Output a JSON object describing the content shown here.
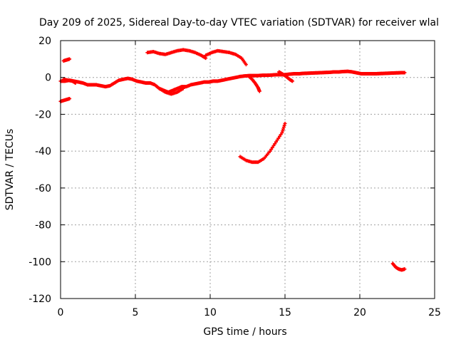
{
  "chart_data": {
    "type": "scatter",
    "title": "Day 209 of 2025, Sidereal Day-to-day VTEC variation (SDTVAR) for receiver wlal",
    "xlabel": "GPS time / hours",
    "ylabel": "SDTVAR / TECUs",
    "xlim": [
      0,
      25
    ],
    "ylim": [
      -120,
      20
    ],
    "xticks": [
      0,
      5,
      10,
      15,
      20,
      25
    ],
    "yticks": [
      20,
      0,
      -20,
      -40,
      -60,
      -80,
      -100,
      -120
    ],
    "grid": true,
    "legend": "none",
    "series_color": "#ff0000",
    "series": [
      {
        "x": [
          0.0,
          0.3,
          0.6,
          0.9,
          1.2,
          1.5,
          1.8,
          2.1,
          2.4,
          2.7,
          3.0,
          3.3,
          3.6,
          3.9,
          4.2,
          4.5,
          4.8,
          5.1,
          5.4,
          5.7,
          6.0,
          6.3,
          6.6,
          6.9,
          7.2,
          7.5,
          7.8,
          8.1,
          8.4,
          8.7,
          9.0,
          9.3,
          9.6,
          9.9,
          10.2,
          10.5,
          10.8,
          11.1,
          11.4,
          11.7,
          12.0,
          12.3,
          12.6,
          12.9,
          13.2,
          13.5,
          13.8,
          14.1,
          14.4,
          14.7,
          15.0,
          15.3,
          15.6,
          15.9,
          16.2,
          16.5,
          16.8,
          17.1,
          17.4,
          17.7,
          18.0,
          18.3,
          18.6,
          18.9,
          19.2,
          19.5,
          19.8,
          20.1,
          20.4,
          20.7,
          21.0,
          21.3,
          21.6,
          21.9,
          22.2,
          22.5,
          22.8,
          23.0
        ],
        "y": [
          -2,
          -2,
          -1.5,
          -2,
          -2.5,
          -3,
          -4,
          -4,
          -4,
          -4.5,
          -5,
          -4.5,
          -3,
          -1.5,
          -1,
          -0.5,
          -1,
          -2,
          -2.5,
          -3,
          -3,
          -4,
          -6,
          -7,
          -8,
          -7,
          -6,
          -5,
          -5,
          -4,
          -3.5,
          -3,
          -2.5,
          -2.5,
          -2,
          -2,
          -1.5,
          -1,
          -0.5,
          0,
          0.5,
          0.8,
          1,
          1,
          1,
          1.2,
          1.2,
          1.3,
          1.5,
          1.5,
          1.5,
          1.8,
          2,
          2,
          2.2,
          2.3,
          2.4,
          2.5,
          2.6,
          2.7,
          2.8,
          3,
          3,
          3.2,
          3.3,
          3,
          2.5,
          2,
          2,
          2,
          2,
          2.1,
          2.2,
          2.3,
          2.4,
          2.5,
          2.6,
          2.6
        ]
      },
      {
        "x": [
          0.2,
          0.4,
          0.6
        ],
        "y": [
          9,
          9.5,
          10
        ]
      },
      {
        "x": [
          0.0,
          0.2,
          0.4,
          0.6
        ],
        "y": [
          -13,
          -12.5,
          -12,
          -11.5
        ]
      },
      {
        "x": [
          0.2,
          0.5,
          0.8,
          1.0
        ],
        "y": [
          -1,
          -1.5,
          -2,
          -3
        ]
      },
      {
        "x": [
          5.8,
          6.2,
          6.6,
          7.0,
          7.4,
          7.8,
          8.2,
          8.6,
          9.0,
          9.4,
          9.7
        ],
        "y": [
          13.5,
          14,
          13,
          12.5,
          13.5,
          14.5,
          15,
          14.5,
          13.5,
          12,
          10.5
        ]
      },
      {
        "x": [
          9.7,
          10.1,
          10.5,
          10.9,
          11.3,
          11.7,
          12.1,
          12.4
        ],
        "y": [
          12,
          13.5,
          14.5,
          14,
          13.5,
          12.5,
          10.5,
          7
        ]
      },
      {
        "x": [
          12.6,
          12.8,
          13.0,
          13.2,
          13.3
        ],
        "y": [
          0.5,
          -1,
          -3,
          -5.5,
          -7.5
        ]
      },
      {
        "x": [
          14.6,
          14.8,
          15.0,
          15.3,
          15.5
        ],
        "y": [
          3,
          2,
          1,
          -1,
          -2
        ]
      },
      {
        "x": [
          6.6,
          7.0,
          7.4,
          7.8,
          8.2
        ],
        "y": [
          -6,
          -8,
          -9,
          -8,
          -6
        ]
      },
      {
        "x": [
          12.0,
          12.4,
          12.8,
          13.2,
          13.6,
          14.0,
          14.4,
          14.8,
          15.0
        ],
        "y": [
          -43,
          -45,
          -46,
          -46,
          -44,
          -40,
          -35,
          -30,
          -25
        ]
      },
      {
        "x": [
          22.2,
          22.4,
          22.6,
          22.8,
          23.0
        ],
        "y": [
          -101,
          -103,
          -104,
          -104.5,
          -104
        ]
      }
    ]
  }
}
